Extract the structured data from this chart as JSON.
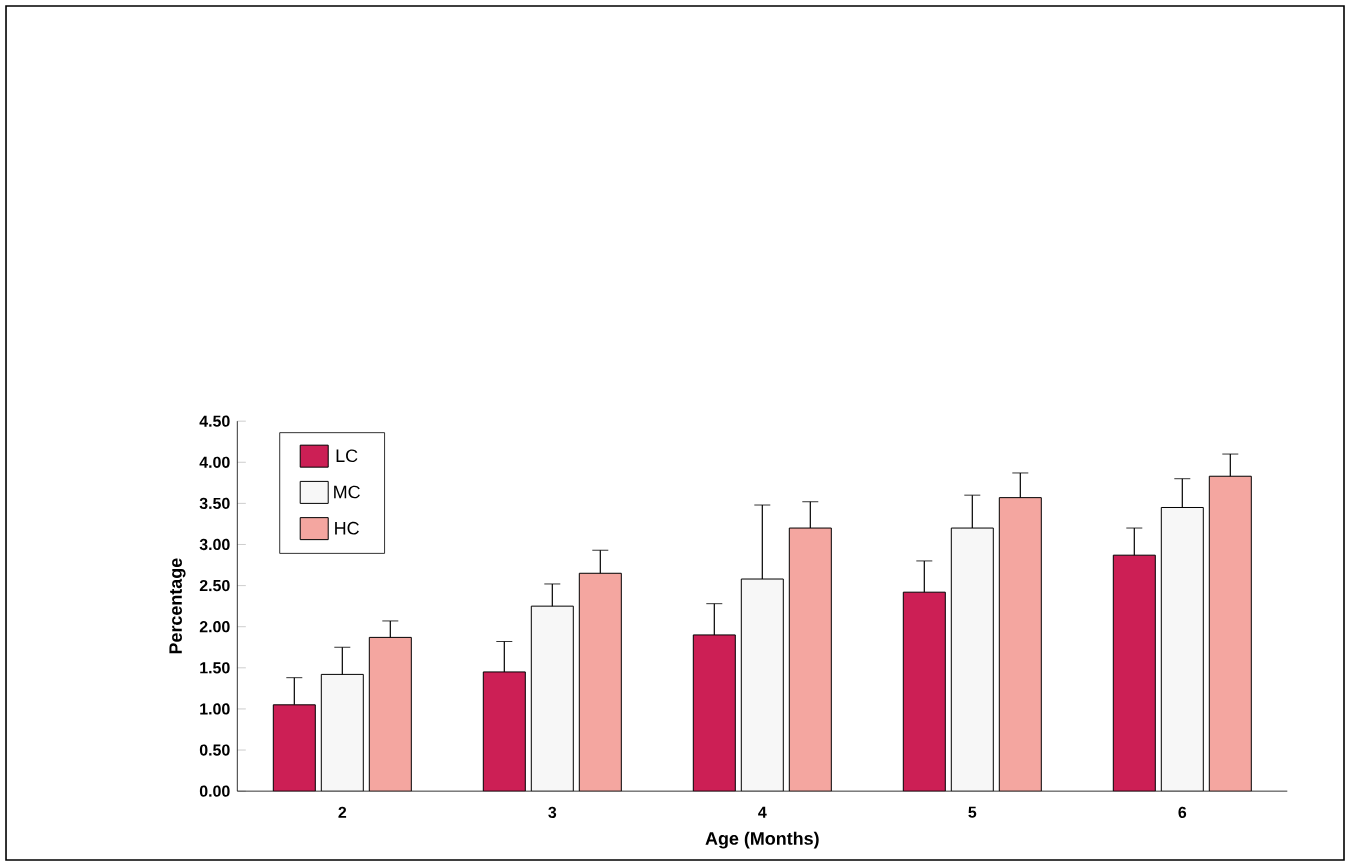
{
  "chart_data": {
    "type": "bar",
    "xlabel": "Age (Months)",
    "ylabel": "Percentage",
    "categories": [
      "2",
      "3",
      "4",
      "5",
      "6"
    ],
    "series": [
      {
        "name": "LC",
        "color": "#cc1f55",
        "values": [
          1.05,
          1.45,
          1.9,
          2.42,
          2.87
        ],
        "errors": [
          [
            1.05,
            1.38
          ],
          [
            1.45,
            1.82
          ],
          [
            1.9,
            2.28
          ],
          [
            2.42,
            2.8
          ],
          [
            2.87,
            3.2
          ]
        ]
      },
      {
        "name": "MC",
        "color": "#f7f7f7",
        "values": [
          1.42,
          2.25,
          2.58,
          3.2,
          3.45
        ],
        "errors": [
          [
            1.42,
            1.75
          ],
          [
            2.25,
            2.52
          ],
          [
            2.58,
            3.48
          ],
          [
            3.2,
            3.6
          ],
          [
            3.45,
            3.8
          ]
        ]
      },
      {
        "name": "HC",
        "color": "#f4a6a0",
        "values": [
          1.87,
          2.65,
          3.2,
          3.57,
          3.83
        ],
        "errors": [
          [
            1.87,
            2.07
          ],
          [
            2.65,
            2.93
          ],
          [
            3.2,
            3.52
          ],
          [
            3.57,
            3.87
          ],
          [
            3.83,
            4.1
          ]
        ]
      }
    ],
    "ylim": [
      0,
      4.5
    ],
    "yticks": [
      {
        "value": 0,
        "label": "0.00"
      },
      {
        "value": 0.5,
        "label": "0.50"
      },
      {
        "value": 1,
        "label": "1.00"
      },
      {
        "value": 1.5,
        "label": "1.50"
      },
      {
        "value": 2,
        "label": "2.00"
      },
      {
        "value": 2.5,
        "label": "2.50"
      },
      {
        "value": 3,
        "label": "3.00"
      },
      {
        "value": 3.5,
        "label": "3.50"
      },
      {
        "value": 4,
        "label": "4.00"
      },
      {
        "value": 4.5,
        "label": "4.50"
      }
    ],
    "legend": "top left",
    "grid": false
  }
}
